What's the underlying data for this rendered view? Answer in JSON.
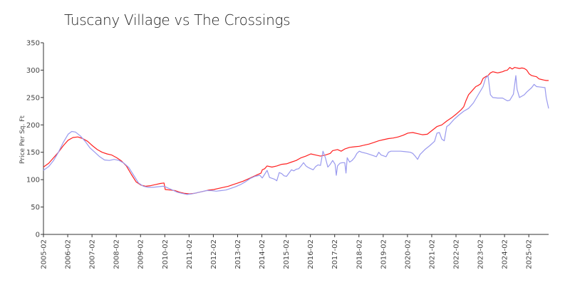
{
  "chart_data": {
    "type": "line",
    "title": "Tuscany Village vs The Crossings",
    "xlabel": "",
    "ylabel": "Price Per Sq. Ft",
    "ylim": [
      0,
      350
    ],
    "yticks": [
      0,
      50,
      100,
      150,
      200,
      250,
      300,
      350
    ],
    "xlim": [
      2005.083,
      2025.9
    ],
    "x_tick_labels": [
      "2005-02",
      "2006-02",
      "2007-02",
      "2008-02",
      "2009-02",
      "2010-02",
      "2011-02",
      "2012-02",
      "2013-02",
      "2014-02",
      "2015-02",
      "2016-02",
      "2017-02",
      "2018-02",
      "2019-02",
      "2020-02",
      "2021-02",
      "2022-02",
      "2023-02",
      "2024-02",
      "2025-02"
    ],
    "series": [
      {
        "name": "Tuscany Village",
        "color": "#ff2020",
        "points": [
          [
            2005.08,
            123
          ],
          [
            2005.3,
            130
          ],
          [
            2005.5,
            140
          ],
          [
            2005.7,
            150
          ],
          [
            2005.9,
            162
          ],
          [
            2006.1,
            172
          ],
          [
            2006.3,
            177
          ],
          [
            2006.5,
            178
          ],
          [
            2006.7,
            175
          ],
          [
            2006.9,
            170
          ],
          [
            2007.1,
            162
          ],
          [
            2007.3,
            155
          ],
          [
            2007.5,
            150
          ],
          [
            2007.7,
            147
          ],
          [
            2007.9,
            145
          ],
          [
            2008.1,
            140
          ],
          [
            2008.3,
            134
          ],
          [
            2008.5,
            125
          ],
          [
            2008.7,
            110
          ],
          [
            2008.9,
            96
          ],
          [
            2009.1,
            90
          ],
          [
            2009.3,
            88
          ],
          [
            2009.5,
            89
          ],
          [
            2009.7,
            91
          ],
          [
            2009.9,
            93
          ],
          [
            2010.05,
            94
          ],
          [
            2010.1,
            82
          ],
          [
            2010.3,
            81
          ],
          [
            2010.5,
            80
          ],
          [
            2010.7,
            77
          ],
          [
            2010.9,
            75
          ],
          [
            2011.1,
            74
          ],
          [
            2011.3,
            75
          ],
          [
            2011.5,
            77
          ],
          [
            2011.7,
            79
          ],
          [
            2011.9,
            81
          ],
          [
            2012.1,
            82
          ],
          [
            2012.3,
            84
          ],
          [
            2012.5,
            86
          ],
          [
            2012.7,
            88
          ],
          [
            2012.9,
            91
          ],
          [
            2013.1,
            94
          ],
          [
            2013.3,
            97
          ],
          [
            2013.5,
            101
          ],
          [
            2013.7,
            105
          ],
          [
            2013.9,
            109
          ],
          [
            2014.05,
            112
          ],
          [
            2014.1,
            118
          ],
          [
            2014.2,
            120
          ],
          [
            2014.3,
            125
          ],
          [
            2014.5,
            123
          ],
          [
            2014.7,
            125
          ],
          [
            2014.9,
            128
          ],
          [
            2015.1,
            129
          ],
          [
            2015.3,
            132
          ],
          [
            2015.5,
            135
          ],
          [
            2015.7,
            140
          ],
          [
            2015.9,
            143
          ],
          [
            2016.1,
            147
          ],
          [
            2016.3,
            145
          ],
          [
            2016.5,
            143
          ],
          [
            2016.7,
            145
          ],
          [
            2016.9,
            148
          ],
          [
            2017.0,
            153
          ],
          [
            2017.2,
            155
          ],
          [
            2017.35,
            152
          ],
          [
            2017.5,
            156
          ],
          [
            2017.7,
            159
          ],
          [
            2017.9,
            160
          ],
          [
            2018.1,
            161
          ],
          [
            2018.3,
            163
          ],
          [
            2018.5,
            165
          ],
          [
            2018.7,
            168
          ],
          [
            2018.9,
            171
          ],
          [
            2019.1,
            173
          ],
          [
            2019.3,
            175
          ],
          [
            2019.5,
            176
          ],
          [
            2019.7,
            178
          ],
          [
            2019.9,
            181
          ],
          [
            2020.1,
            185
          ],
          [
            2020.3,
            186
          ],
          [
            2020.5,
            184
          ],
          [
            2020.7,
            182
          ],
          [
            2020.9,
            183
          ],
          [
            2021.1,
            190
          ],
          [
            2021.3,
            197
          ],
          [
            2021.5,
            200
          ],
          [
            2021.7,
            207
          ],
          [
            2021.9,
            213
          ],
          [
            2022.1,
            220
          ],
          [
            2022.3,
            228
          ],
          [
            2022.4,
            233
          ],
          [
            2022.5,
            245
          ],
          [
            2022.6,
            255
          ],
          [
            2022.7,
            260
          ],
          [
            2022.8,
            265
          ],
          [
            2022.9,
            270
          ],
          [
            2023.0,
            272
          ],
          [
            2023.1,
            275
          ],
          [
            2023.2,
            285
          ],
          [
            2023.3,
            288
          ],
          [
            2023.4,
            290
          ],
          [
            2023.5,
            295
          ],
          [
            2023.6,
            297
          ],
          [
            2023.7,
            296
          ],
          [
            2023.8,
            295
          ],
          [
            2023.9,
            296
          ],
          [
            2024.0,
            297
          ],
          [
            2024.1,
            299
          ],
          [
            2024.2,
            300
          ],
          [
            2024.3,
            305
          ],
          [
            2024.4,
            302
          ],
          [
            2024.5,
            305
          ],
          [
            2024.6,
            304
          ],
          [
            2024.7,
            303
          ],
          [
            2024.8,
            304
          ],
          [
            2024.9,
            303
          ],
          [
            2025.0,
            300
          ],
          [
            2025.1,
            293
          ],
          [
            2025.2,
            290
          ],
          [
            2025.3,
            289
          ],
          [
            2025.4,
            288
          ],
          [
            2025.5,
            284
          ],
          [
            2025.6,
            283
          ],
          [
            2025.7,
            282
          ],
          [
            2025.8,
            281
          ],
          [
            2025.9,
            281
          ]
        ]
      },
      {
        "name": "The Crossings",
        "color": "#9999ee",
        "points": [
          [
            2005.08,
            117
          ],
          [
            2005.3,
            124
          ],
          [
            2005.5,
            135
          ],
          [
            2005.7,
            150
          ],
          [
            2005.9,
            168
          ],
          [
            2006.1,
            183
          ],
          [
            2006.25,
            188
          ],
          [
            2006.4,
            187
          ],
          [
            2006.6,
            180
          ],
          [
            2006.8,
            170
          ],
          [
            2007.0,
            158
          ],
          [
            2007.2,
            150
          ],
          [
            2007.4,
            142
          ],
          [
            2007.6,
            136
          ],
          [
            2007.8,
            135
          ],
          [
            2008.0,
            137
          ],
          [
            2008.2,
            135
          ],
          [
            2008.4,
            130
          ],
          [
            2008.6,
            122
          ],
          [
            2008.8,
            108
          ],
          [
            2009.0,
            94
          ],
          [
            2009.2,
            88
          ],
          [
            2009.4,
            86
          ],
          [
            2009.6,
            86
          ],
          [
            2009.8,
            87
          ],
          [
            2010.0,
            88
          ],
          [
            2010.1,
            87
          ],
          [
            2010.2,
            85
          ],
          [
            2010.4,
            81
          ],
          [
            2010.6,
            77
          ],
          [
            2010.8,
            75
          ],
          [
            2011.0,
            73
          ],
          [
            2011.2,
            74
          ],
          [
            2011.4,
            76
          ],
          [
            2011.6,
            78
          ],
          [
            2011.8,
            80
          ],
          [
            2012.0,
            80
          ],
          [
            2012.2,
            79
          ],
          [
            2012.4,
            80
          ],
          [
            2012.6,
            81
          ],
          [
            2012.8,
            84
          ],
          [
            2013.0,
            87
          ],
          [
            2013.2,
            91
          ],
          [
            2013.4,
            96
          ],
          [
            2013.6,
            102
          ],
          [
            2013.8,
            106
          ],
          [
            2014.0,
            108
          ],
          [
            2014.1,
            103
          ],
          [
            2014.2,
            110
          ],
          [
            2014.3,
            117
          ],
          [
            2014.4,
            104
          ],
          [
            2014.6,
            101
          ],
          [
            2014.7,
            98
          ],
          [
            2014.8,
            113
          ],
          [
            2014.9,
            111
          ],
          [
            2015.0,
            107
          ],
          [
            2015.1,
            106
          ],
          [
            2015.2,
            112
          ],
          [
            2015.3,
            118
          ],
          [
            2015.4,
            116
          ],
          [
            2015.5,
            119
          ],
          [
            2015.6,
            120
          ],
          [
            2015.7,
            125
          ],
          [
            2015.8,
            131
          ],
          [
            2015.9,
            125
          ],
          [
            2016.0,
            122
          ],
          [
            2016.1,
            120
          ],
          [
            2016.2,
            118
          ],
          [
            2016.3,
            124
          ],
          [
            2016.4,
            127
          ],
          [
            2016.5,
            126
          ],
          [
            2016.6,
            152
          ],
          [
            2016.7,
            140
          ],
          [
            2016.8,
            123
          ],
          [
            2016.9,
            128
          ],
          [
            2017.0,
            135
          ],
          [
            2017.1,
            128
          ],
          [
            2017.15,
            108
          ],
          [
            2017.2,
            125
          ],
          [
            2017.3,
            130
          ],
          [
            2017.4,
            131
          ],
          [
            2017.5,
            131
          ],
          [
            2017.55,
            112
          ],
          [
            2017.6,
            140
          ],
          [
            2017.7,
            132
          ],
          [
            2017.8,
            135
          ],
          [
            2017.9,
            140
          ],
          [
            2018.0,
            148
          ],
          [
            2018.1,
            152
          ],
          [
            2018.2,
            150
          ],
          [
            2018.4,
            148
          ],
          [
            2018.6,
            145
          ],
          [
            2018.8,
            142
          ],
          [
            2018.9,
            150
          ],
          [
            2019.0,
            145
          ],
          [
            2019.2,
            142
          ],
          [
            2019.3,
            150
          ],
          [
            2019.4,
            152
          ],
          [
            2019.6,
            152
          ],
          [
            2019.8,
            152
          ],
          [
            2020.0,
            151
          ],
          [
            2020.2,
            150
          ],
          [
            2020.3,
            148
          ],
          [
            2020.4,
            143
          ],
          [
            2020.5,
            137
          ],
          [
            2020.6,
            146
          ],
          [
            2020.8,
            155
          ],
          [
            2021.0,
            162
          ],
          [
            2021.2,
            170
          ],
          [
            2021.3,
            185
          ],
          [
            2021.4,
            186
          ],
          [
            2021.5,
            174
          ],
          [
            2021.6,
            171
          ],
          [
            2021.7,
            197
          ],
          [
            2021.8,
            200
          ],
          [
            2021.9,
            205
          ],
          [
            2022.0,
            210
          ],
          [
            2022.2,
            218
          ],
          [
            2022.4,
            225
          ],
          [
            2022.6,
            230
          ],
          [
            2022.8,
            240
          ],
          [
            2023.0,
            255
          ],
          [
            2023.2,
            270
          ],
          [
            2023.3,
            285
          ],
          [
            2023.4,
            290
          ],
          [
            2023.5,
            255
          ],
          [
            2023.6,
            250
          ],
          [
            2023.8,
            249
          ],
          [
            2024.0,
            249
          ],
          [
            2024.2,
            244
          ],
          [
            2024.3,
            245
          ],
          [
            2024.45,
            256
          ],
          [
            2024.55,
            290
          ],
          [
            2024.6,
            265
          ],
          [
            2024.7,
            250
          ],
          [
            2024.9,
            255
          ],
          [
            2025.0,
            260
          ],
          [
            2025.2,
            268
          ],
          [
            2025.3,
            274
          ],
          [
            2025.4,
            270
          ],
          [
            2025.6,
            269
          ],
          [
            2025.75,
            268
          ],
          [
            2025.8,
            250
          ],
          [
            2025.9,
            230
          ]
        ]
      }
    ]
  }
}
